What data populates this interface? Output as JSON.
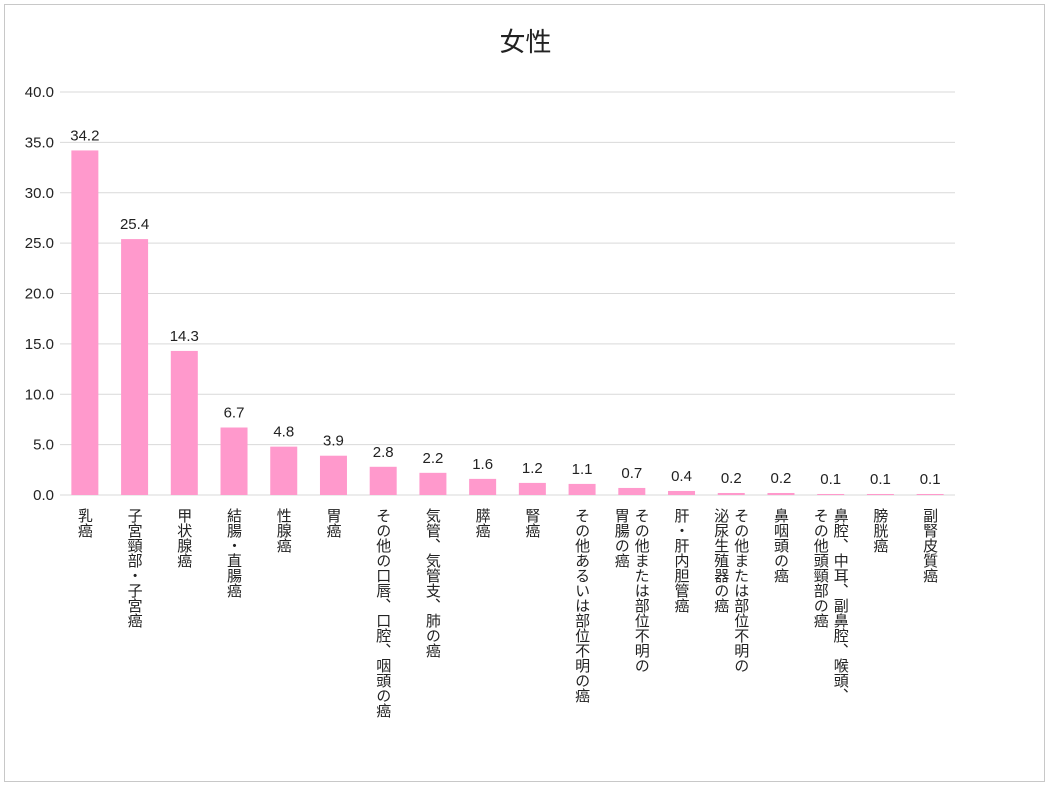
{
  "chart_data": {
    "type": "bar",
    "title": "女性",
    "xlabel": "",
    "ylabel": "",
    "ylim": [
      0,
      40
    ],
    "ytick_step": 5,
    "yticks": [
      "0.0",
      "5.0",
      "10.0",
      "15.0",
      "20.0",
      "25.0",
      "30.0",
      "35.0",
      "40.0"
    ],
    "grid": true,
    "legend": "none",
    "bar_color": "#ff99cc",
    "categories": [
      [
        "乳癌"
      ],
      [
        "子宮頸部・子宮癌"
      ],
      [
        "甲状腺癌"
      ],
      [
        "結腸・直腸癌"
      ],
      [
        "性腺癌"
      ],
      [
        "胃癌"
      ],
      [
        "その他の口唇、口腔、咽頭の癌"
      ],
      [
        "気管、気管支、肺の癌"
      ],
      [
        "膵癌"
      ],
      [
        "腎癌"
      ],
      [
        "その他あるいは部位不明の癌"
      ],
      [
        "その他または部位不明の",
        "胃腸の癌"
      ],
      [
        "肝・肝内胆管癌"
      ],
      [
        "その他または部位不明の",
        "泌尿生殖器の癌"
      ],
      [
        "鼻咽頭の癌"
      ],
      [
        "鼻腔、中耳、副鼻腔、喉頭、",
        "その他頭頸部の癌"
      ],
      [
        "膀胱癌"
      ],
      [
        "副腎皮質癌"
      ]
    ],
    "values": [
      34.2,
      25.4,
      14.3,
      6.7,
      4.8,
      3.9,
      2.8,
      2.2,
      1.6,
      1.2,
      1.1,
      0.7,
      0.4,
      0.2,
      0.2,
      0.1,
      0.1,
      0.1
    ],
    "value_labels": [
      "34.2",
      "25.4",
      "14.3",
      "6.7",
      "4.8",
      "3.9",
      "2.8",
      "2.2",
      "1.6",
      "1.2",
      "1.1",
      "0.7",
      "0.4",
      "0.2",
      "0.2",
      "0.1",
      "0.1",
      "0.1"
    ]
  }
}
